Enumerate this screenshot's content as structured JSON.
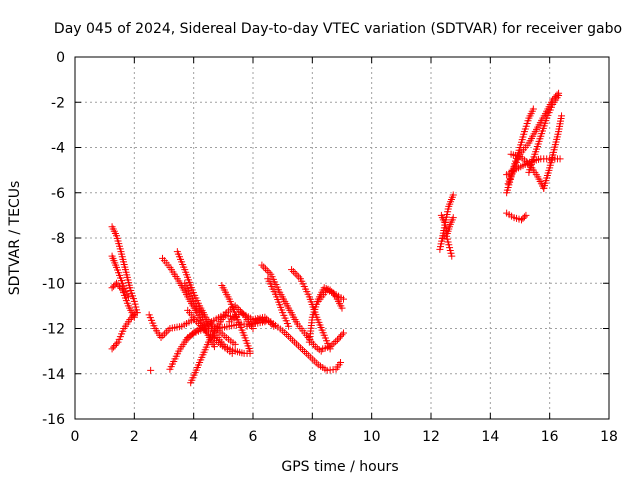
{
  "chart_data": {
    "type": "scatter",
    "title": "Day 045 of 2024, Sidereal Day-to-day VTEC variation (SDTVAR) for receiver gabo",
    "xlabel": "GPS time / hours",
    "ylabel": "SDTVAR / TECUs",
    "xlim": [
      0,
      18
    ],
    "ylim": [
      -16,
      0
    ],
    "xticks": [
      0,
      2,
      4,
      6,
      8,
      10,
      12,
      14,
      16,
      18
    ],
    "yticks": [
      0,
      -2,
      -4,
      -6,
      -8,
      -10,
      -12,
      -14,
      -16
    ],
    "grid": true,
    "marker": "+",
    "color": "#ff0000",
    "series": [
      {
        "points": [
          [
            1.25,
            -7.5
          ],
          [
            1.4,
            -7.9
          ],
          [
            1.55,
            -8.6
          ],
          [
            1.7,
            -9.4
          ],
          [
            1.85,
            -10.2
          ],
          [
            2.0,
            -10.8
          ],
          [
            2.1,
            -11.3
          ]
        ]
      },
      {
        "points": [
          [
            1.25,
            -10.2
          ],
          [
            1.4,
            -10.0
          ],
          [
            1.6,
            -10.3
          ],
          [
            1.8,
            -11.0
          ],
          [
            2.0,
            -11.5
          ]
        ]
      },
      {
        "points": [
          [
            1.25,
            -8.8
          ],
          [
            1.4,
            -9.3
          ],
          [
            1.6,
            -10.0
          ],
          [
            1.8,
            -10.6
          ]
        ]
      },
      {
        "points": [
          [
            1.25,
            -12.9
          ],
          [
            1.45,
            -12.6
          ],
          [
            1.65,
            -12.0
          ],
          [
            1.85,
            -11.6
          ],
          [
            2.05,
            -11.3
          ]
        ]
      },
      {
        "points": [
          [
            2.55,
            -13.85
          ]
        ]
      },
      {
        "points": [
          [
            2.5,
            -11.4
          ],
          [
            2.7,
            -12.0
          ],
          [
            2.9,
            -12.4
          ],
          [
            3.2,
            -12.0
          ],
          [
            3.6,
            -11.9
          ],
          [
            4.0,
            -11.6
          ]
        ]
      },
      {
        "points": [
          [
            2.95,
            -8.9
          ],
          [
            3.2,
            -9.3
          ],
          [
            3.5,
            -9.9
          ],
          [
            3.8,
            -10.6
          ],
          [
            4.1,
            -11.3
          ],
          [
            4.4,
            -12.1
          ],
          [
            4.7,
            -12.8
          ]
        ]
      },
      {
        "points": [
          [
            3.45,
            -8.6
          ],
          [
            3.7,
            -9.4
          ],
          [
            3.95,
            -10.3
          ],
          [
            4.2,
            -11.0
          ],
          [
            4.45,
            -11.6
          ],
          [
            4.75,
            -12.0
          ],
          [
            5.1,
            -12.4
          ],
          [
            5.4,
            -12.7
          ]
        ]
      },
      {
        "points": [
          [
            3.2,
            -13.8
          ],
          [
            3.5,
            -13.0
          ],
          [
            3.8,
            -12.4
          ],
          [
            4.2,
            -12.0
          ],
          [
            4.6,
            -11.7
          ],
          [
            5.0,
            -11.4
          ],
          [
            5.4,
            -11.5
          ]
        ]
      },
      {
        "points": [
          [
            3.9,
            -14.4
          ],
          [
            4.2,
            -13.5
          ],
          [
            4.5,
            -12.6
          ],
          [
            4.8,
            -11.9
          ],
          [
            5.1,
            -11.3
          ],
          [
            5.4,
            -11.0
          ],
          [
            5.7,
            -11.4
          ],
          [
            6.0,
            -12.0
          ]
        ]
      },
      {
        "points": [
          [
            3.7,
            -10.0
          ],
          [
            4.0,
            -10.8
          ],
          [
            4.35,
            -11.6
          ],
          [
            4.7,
            -12.2
          ],
          [
            5.05,
            -12.8
          ],
          [
            5.4,
            -13.0
          ],
          [
            5.7,
            -13.1
          ],
          [
            5.9,
            -13.1
          ]
        ]
      },
      {
        "points": [
          [
            4.95,
            -10.1
          ],
          [
            5.2,
            -10.7
          ],
          [
            5.45,
            -11.5
          ],
          [
            5.7,
            -12.3
          ],
          [
            5.9,
            -13.0
          ]
        ]
      },
      {
        "points": [
          [
            3.75,
            -12.5
          ],
          [
            4.0,
            -12.2
          ],
          [
            4.4,
            -12.0
          ],
          [
            4.8,
            -12.0
          ],
          [
            5.2,
            -11.9
          ],
          [
            5.6,
            -11.8
          ],
          [
            6.0,
            -11.8
          ],
          [
            6.4,
            -11.7
          ]
        ]
      },
      {
        "points": [
          [
            3.8,
            -11.2
          ],
          [
            4.1,
            -11.7
          ],
          [
            4.5,
            -12.2
          ],
          [
            4.9,
            -12.7
          ],
          [
            5.3,
            -13.1
          ]
        ]
      },
      {
        "points": [
          [
            5.2,
            -11.7
          ],
          [
            5.6,
            -11.3
          ],
          [
            6.0,
            -11.6
          ],
          [
            6.4,
            -11.5
          ],
          [
            6.7,
            -11.9
          ]
        ]
      },
      {
        "points": [
          [
            6.3,
            -9.2
          ],
          [
            6.6,
            -9.6
          ],
          [
            6.9,
            -10.4
          ],
          [
            7.2,
            -11.1
          ],
          [
            7.5,
            -11.8
          ],
          [
            7.8,
            -12.3
          ],
          [
            8.1,
            -12.8
          ],
          [
            8.3,
            -13.0
          ]
        ]
      },
      {
        "points": [
          [
            6.5,
            -9.8
          ],
          [
            6.8,
            -10.6
          ],
          [
            7.0,
            -11.3
          ],
          [
            7.2,
            -11.9
          ]
        ]
      },
      {
        "points": [
          [
            5.8,
            -11.9
          ],
          [
            6.2,
            -11.6
          ],
          [
            6.6,
            -11.7
          ],
          [
            7.0,
            -12.1
          ],
          [
            7.4,
            -12.6
          ],
          [
            7.8,
            -13.1
          ],
          [
            8.2,
            -13.6
          ],
          [
            8.5,
            -13.85
          ],
          [
            8.8,
            -13.8
          ],
          [
            8.95,
            -13.5
          ]
        ]
      },
      {
        "points": [
          [
            7.3,
            -9.4
          ],
          [
            7.6,
            -9.8
          ],
          [
            7.9,
            -10.6
          ],
          [
            8.15,
            -11.5
          ],
          [
            8.4,
            -12.3
          ],
          [
            8.6,
            -12.9
          ]
        ]
      },
      {
        "points": [
          [
            7.9,
            -12.6
          ],
          [
            8.0,
            -11.5
          ],
          [
            8.2,
            -10.7
          ],
          [
            8.4,
            -10.2
          ],
          [
            8.6,
            -10.3
          ],
          [
            8.8,
            -10.6
          ],
          [
            9.0,
            -11.1
          ]
        ]
      },
      {
        "points": [
          [
            8.35,
            -12.9
          ],
          [
            8.6,
            -12.8
          ],
          [
            8.85,
            -12.5
          ],
          [
            9.05,
            -12.2
          ]
        ]
      },
      {
        "points": [
          [
            8.2,
            -10.8
          ],
          [
            8.5,
            -10.3
          ],
          [
            8.8,
            -10.5
          ],
          [
            9.05,
            -10.7
          ]
        ]
      },
      {
        "points": [
          [
            12.3,
            -8.5
          ],
          [
            12.4,
            -7.9
          ],
          [
            12.5,
            -7.2
          ],
          [
            12.6,
            -6.6
          ],
          [
            12.75,
            -6.1
          ]
        ]
      },
      {
        "points": [
          [
            12.4,
            -8.0
          ],
          [
            12.5,
            -7.8
          ],
          [
            12.6,
            -8.3
          ],
          [
            12.7,
            -8.8
          ]
        ]
      },
      {
        "points": [
          [
            12.35,
            -7.0
          ],
          [
            12.45,
            -7.3
          ],
          [
            12.55,
            -7.8
          ],
          [
            12.65,
            -7.4
          ],
          [
            12.75,
            -7.1
          ]
        ]
      },
      {
        "points": [
          [
            14.55,
            -6.0
          ],
          [
            14.7,
            -5.3
          ],
          [
            14.85,
            -4.6
          ],
          [
            15.0,
            -4.0
          ],
          [
            15.15,
            -3.3
          ],
          [
            15.3,
            -2.7
          ],
          [
            15.45,
            -2.3
          ]
        ]
      },
      {
        "points": [
          [
            14.6,
            -5.6
          ],
          [
            14.8,
            -4.9
          ],
          [
            15.0,
            -4.3
          ],
          [
            15.3,
            -3.8
          ],
          [
            15.6,
            -3.1
          ],
          [
            15.9,
            -2.4
          ],
          [
            16.1,
            -1.9
          ],
          [
            16.3,
            -1.6
          ]
        ]
      },
      {
        "points": [
          [
            14.55,
            -5.2
          ],
          [
            14.8,
            -5.0
          ],
          [
            15.1,
            -4.8
          ],
          [
            15.4,
            -4.6
          ],
          [
            15.7,
            -4.5
          ],
          [
            16.0,
            -4.5
          ],
          [
            16.35,
            -4.5
          ]
        ]
      },
      {
        "points": [
          [
            14.7,
            -4.3
          ],
          [
            15.0,
            -4.4
          ],
          [
            15.3,
            -4.7
          ],
          [
            15.6,
            -5.3
          ],
          [
            15.8,
            -5.8
          ]
        ]
      },
      {
        "points": [
          [
            15.3,
            -5.1
          ],
          [
            15.5,
            -4.3
          ],
          [
            15.7,
            -3.5
          ],
          [
            15.9,
            -2.7
          ],
          [
            16.1,
            -2.1
          ],
          [
            16.3,
            -1.7
          ]
        ]
      },
      {
        "points": [
          [
            15.8,
            -5.8
          ],
          [
            16.0,
            -4.9
          ],
          [
            16.15,
            -4.1
          ],
          [
            16.3,
            -3.3
          ],
          [
            16.4,
            -2.6
          ]
        ]
      },
      {
        "points": [
          [
            14.55,
            -6.9
          ],
          [
            14.8,
            -7.1
          ],
          [
            15.05,
            -7.2
          ],
          [
            15.2,
            -7.0
          ]
        ]
      }
    ]
  }
}
